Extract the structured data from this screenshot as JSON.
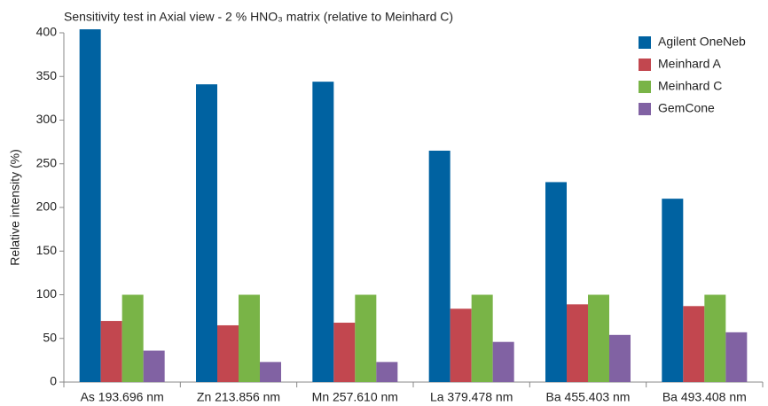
{
  "chart_data": {
    "type": "bar",
    "title": "Sensitivity test in Axial view - 2 % HNO₃ matrix (relative to Meinhard C)",
    "y_label": "Relative intensity (%)",
    "categories": [
      "As 193.696 nm",
      "Zn 213.856 nm",
      "Mn 257.610 nm",
      "La 379.478 nm",
      "Ba 455.403 nm",
      "Ba 493.408 nm"
    ],
    "series": [
      {
        "name": "Agilent OneNeb",
        "color": "#0062a1",
        "values": [
          404,
          341,
          344,
          265,
          229,
          210
        ]
      },
      {
        "name": "Meinhard A",
        "color": "#c2474f",
        "values": [
          70,
          65,
          68,
          84,
          89,
          87
        ]
      },
      {
        "name": "Meinhard C",
        "color": "#79b447",
        "values": [
          100,
          100,
          100,
          100,
          100,
          100
        ]
      },
      {
        "name": "GemCone",
        "color": "#8162a3",
        "values": [
          36,
          23,
          23,
          46,
          54,
          57
        ]
      }
    ],
    "ylim": [
      0,
      400
    ],
    "yticks": [
      0,
      50,
      100,
      150,
      200,
      250,
      300,
      350,
      400
    ],
    "grid": false,
    "legend": "top-right"
  }
}
